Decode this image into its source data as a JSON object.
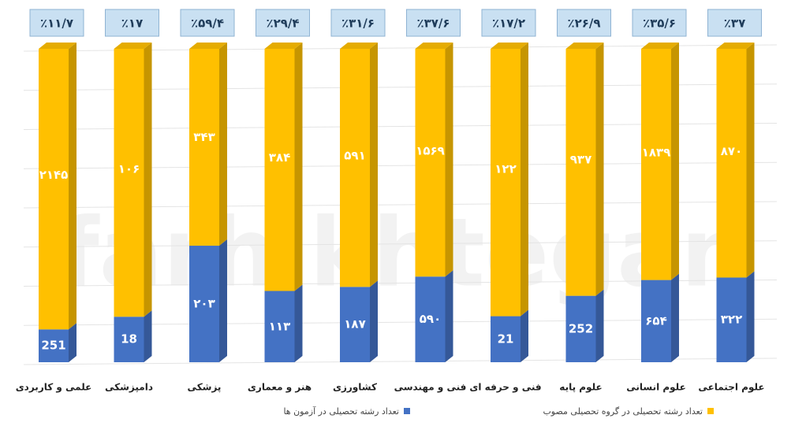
{
  "chart_data": {
    "type": "stacked_bar_100",
    "watermark": "farhikhtegan",
    "categories": [
      "علمی و کاربردی",
      "دامپزشکی",
      "پزشکی",
      "هنر و معماری",
      "کشاورزی",
      "فنی و مهندسی",
      "فنی و حرفه ای",
      "علوم پایه",
      "علوم انسانی",
      "علوم اجتماعی"
    ],
    "series": [
      {
        "name": "تعداد رشته تحصیلی در آزمون ها",
        "color": "#4472c4",
        "values": [
          251,
          18,
          203,
          113,
          187,
          590,
          21,
          252,
          654,
          322
        ],
        "value_labels": [
          "251",
          "18",
          "۲۰۳",
          "۱۱۳",
          "۱۸۷",
          "۵۹۰",
          "21",
          "252",
          "۶۵۴",
          "۳۲۲"
        ]
      },
      {
        "name": "تعداد رشته تحصیلی در گروه تحصیلی مصوب",
        "color": "#ffc000",
        "values": [
          2145,
          106,
          343,
          384,
          591,
          1569,
          122,
          937,
          1839,
          870
        ],
        "value_labels": [
          "۲۱۴۵",
          "۱۰۶",
          "۳۴۳",
          "۳۸۴",
          "۵۹۱",
          "۱۵۶۹",
          "۱۲۲",
          "۹۳۷",
          "۱۸۳۹",
          "۸۷۰"
        ]
      }
    ],
    "ratio_values": [
      11.7,
      17,
      59.4,
      29.4,
      31.6,
      37.6,
      17.2,
      26.9,
      35.6,
      37
    ],
    "ratio_labels": [
      "٪۱۱/۷",
      "٪۱۷",
      "٪۵۹/۴",
      "٪۲۹/۴",
      "٪۳۱/۶",
      "٪۳۷/۶",
      "٪۱۷/۲",
      "٪۲۶/۹",
      "٪۳۵/۶",
      "٪۳۷"
    ]
  }
}
